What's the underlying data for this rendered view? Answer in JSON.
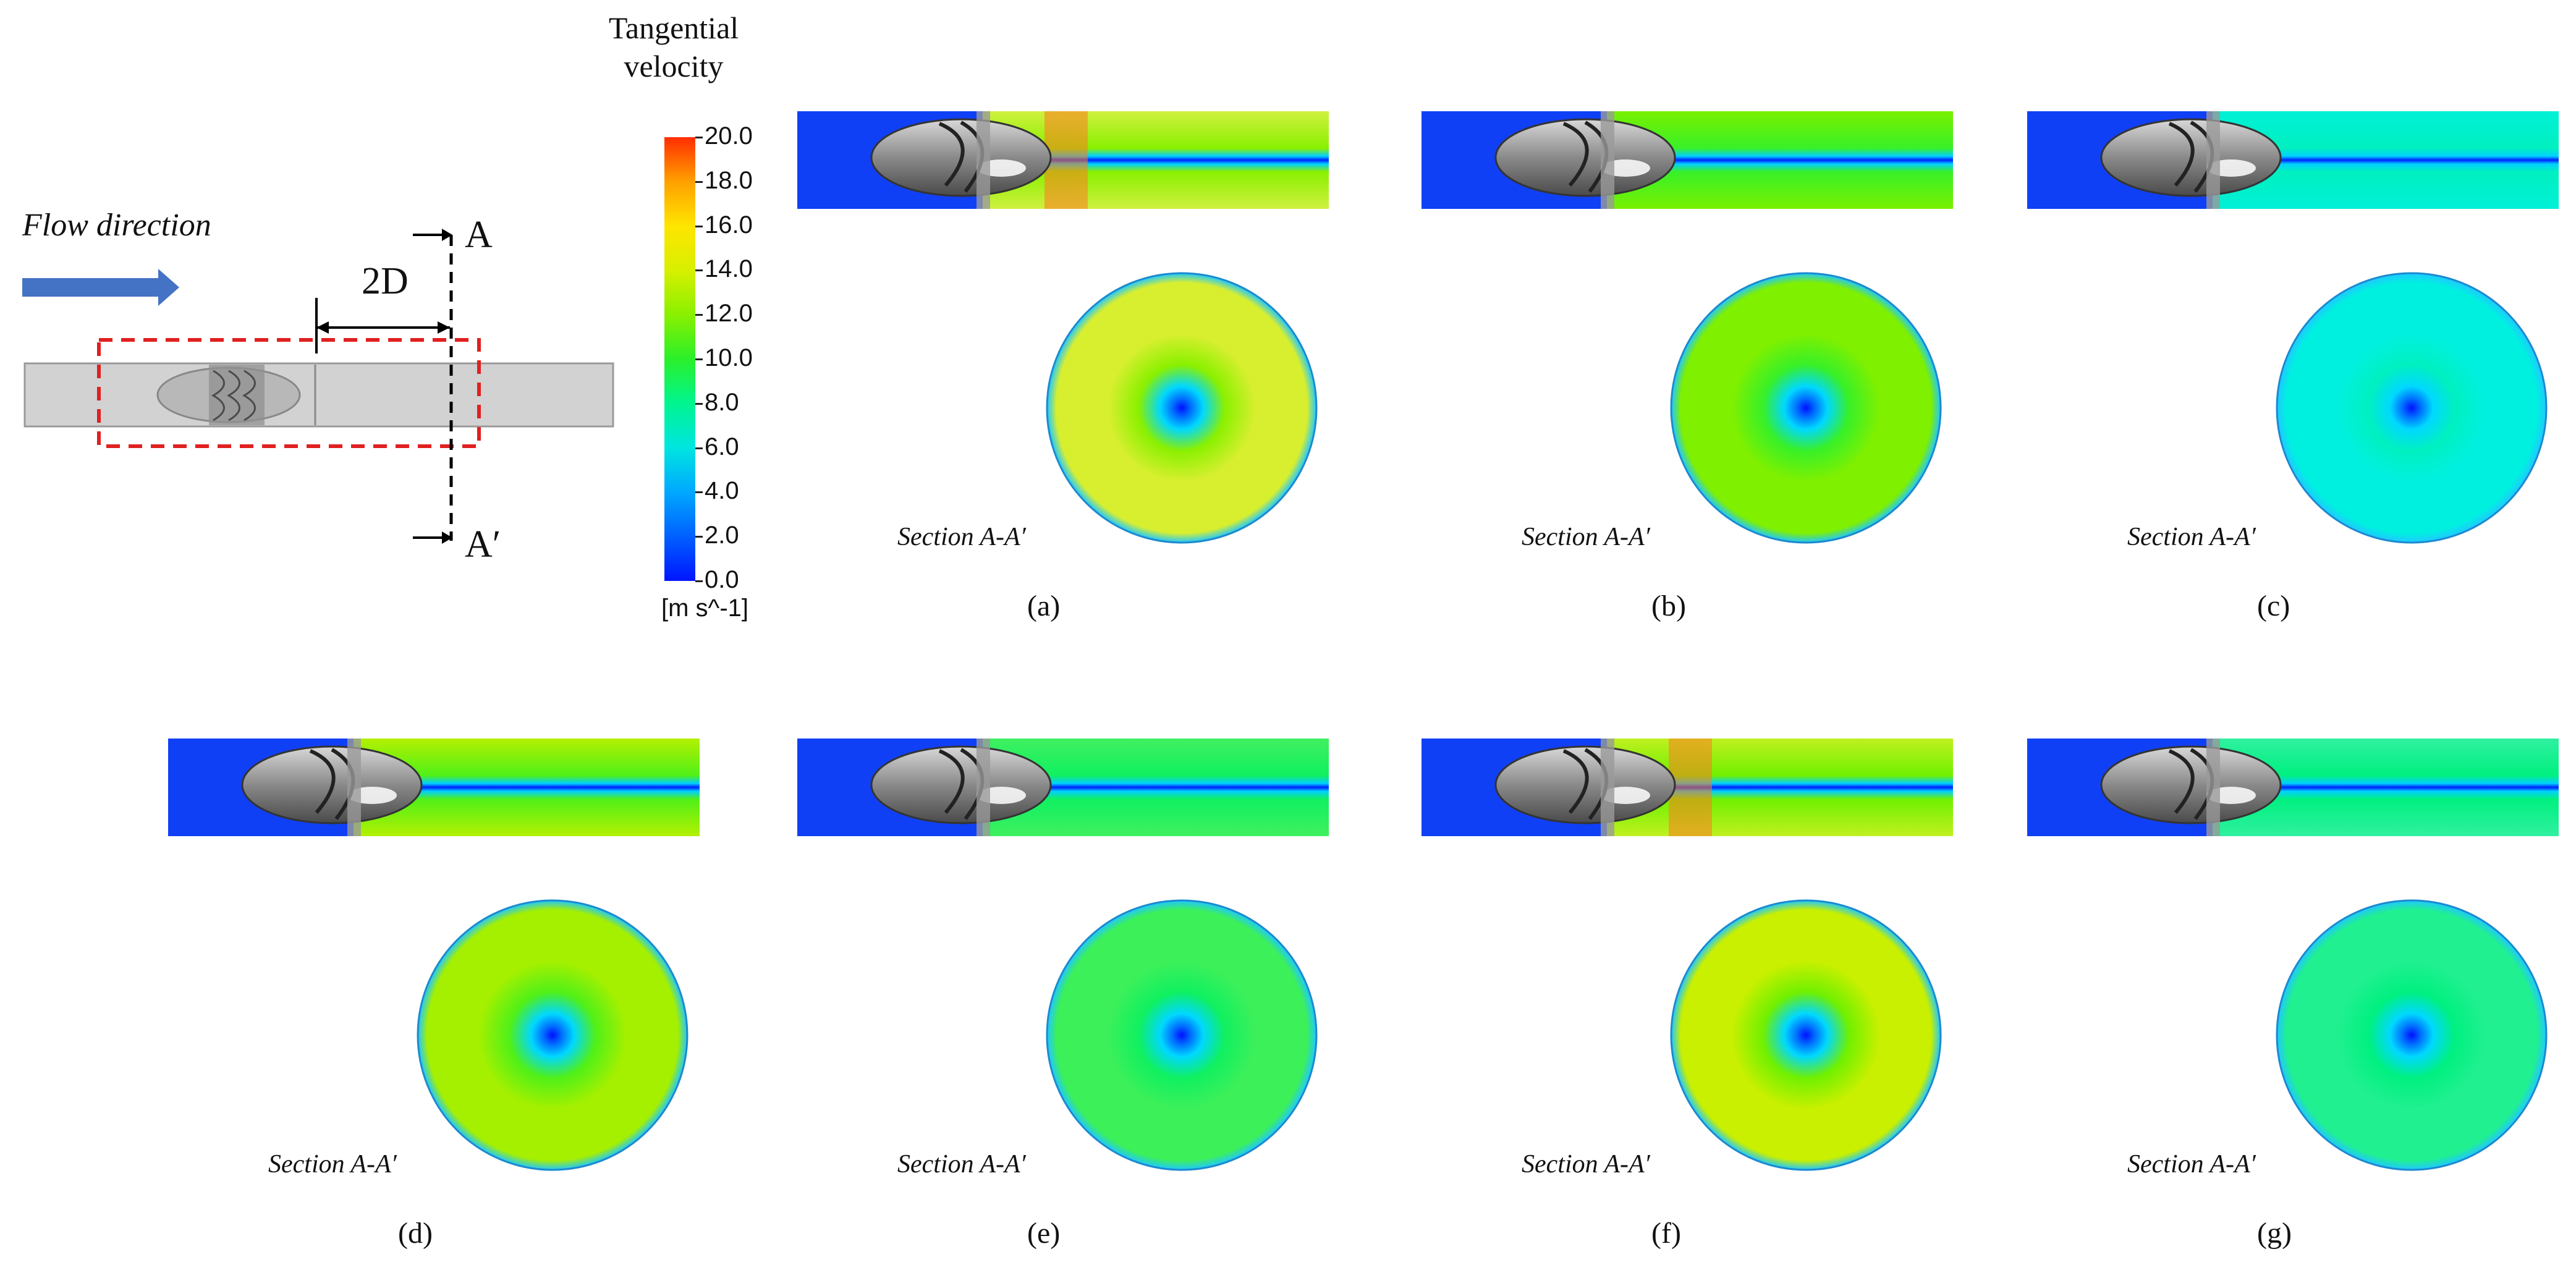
{
  "schematic": {
    "flow_label": "Flow direction",
    "distance_label": "2D",
    "section_start": "A",
    "section_end": "A′"
  },
  "colorbar": {
    "title_line1": "Tangential",
    "title_line2": "velocity",
    "ticks": [
      "20.0",
      "18.0",
      "16.0",
      "14.0",
      "12.0",
      "10.0",
      "8.0",
      "6.0",
      "4.0",
      "2.0",
      "0.0"
    ],
    "unit": "[m s^-1]",
    "colors": [
      "#0015ff",
      "#0060ff",
      "#00a8ff",
      "#00e5e0",
      "#00f590",
      "#2af02a",
      "#8af000",
      "#d7f000",
      "#ffe500",
      "#ffa000",
      "#ff2d00"
    ]
  },
  "panels": [
    {
      "id": "a",
      "label": "(a)",
      "section_label": "Section A-A′",
      "outer_color": "#d8ef30",
      "mid_color": "#8af000",
      "jet_color": "#d0f040",
      "hot": true
    },
    {
      "id": "b",
      "label": "(b)",
      "section_label": "Section A-A′",
      "outer_color": "#7ff000",
      "mid_color": "#38f028",
      "jet_color": "#7af000",
      "hot": false
    },
    {
      "id": "c",
      "label": "(c)",
      "section_label": "Section A-A′",
      "outer_color": "#00f0e0",
      "mid_color": "#00f0c0",
      "jet_color": "#00f0d8",
      "hot": false
    },
    {
      "id": "d",
      "label": "(d)",
      "section_label": "Section A-A′",
      "outer_color": "#a5f000",
      "mid_color": "#50f018",
      "jet_color": "#b4f000",
      "hot": false
    },
    {
      "id": "e",
      "label": "(e)",
      "section_label": "Section A-A′",
      "outer_color": "#3cf05a",
      "mid_color": "#10f060",
      "jet_color": "#40f060",
      "hot": false
    },
    {
      "id": "f",
      "label": "(f)",
      "section_label": "Section A-A′",
      "outer_color": "#c8f000",
      "mid_color": "#70f000",
      "jet_color": "#c0f020",
      "hot": true
    },
    {
      "id": "g",
      "label": "(g)",
      "section_label": "Section A-A′",
      "outer_color": "#20f090",
      "mid_color": "#00f080",
      "jet_color": "#30f0a0",
      "hot": false
    }
  ]
}
